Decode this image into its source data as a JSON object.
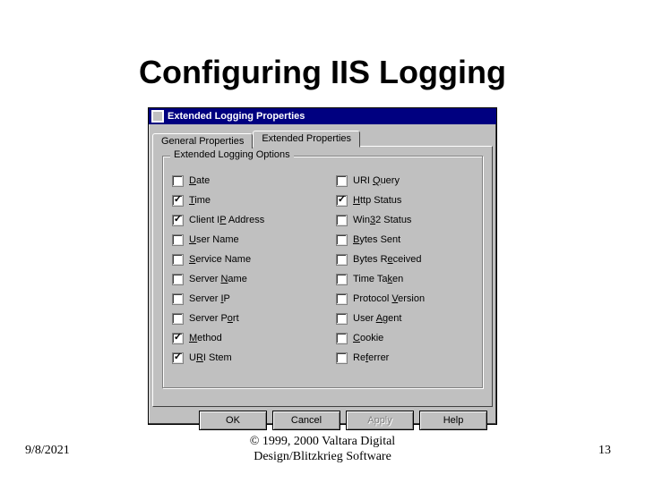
{
  "slide": {
    "title": "Configuring IIS Logging",
    "footer_date": "9/8/2021",
    "footer_copyright_l1": "© 1999, 2000 Valtara Digital",
    "footer_copyright_l2": "Design/Blitzkrieg Software",
    "footer_page": "13"
  },
  "dialog": {
    "title": "Extended Logging Properties",
    "tabs": {
      "general": "General Properties",
      "extended": "Extended Properties"
    },
    "active_tab": "extended",
    "groupbox_title": "Extended Logging Options",
    "options_left": [
      {
        "label_html": "<u>D</u>ate",
        "checked": false
      },
      {
        "label_html": "<u>T</u>ime",
        "checked": true
      },
      {
        "label_html": "Client I<u>P</u> Address",
        "checked": true
      },
      {
        "label_html": "<u>U</u>ser Name",
        "checked": false
      },
      {
        "label_html": "<u>S</u>ervice Name",
        "checked": false
      },
      {
        "label_html": "Server <u>N</u>ame",
        "checked": false
      },
      {
        "label_html": "Server <u>I</u>P",
        "checked": false
      },
      {
        "label_html": "Server P<u>o</u>rt",
        "checked": false
      },
      {
        "label_html": "<u>M</u>ethod",
        "checked": true
      },
      {
        "label_html": "U<u>R</u>I Stem",
        "checked": true
      }
    ],
    "options_right": [
      {
        "label_html": "URI <u>Q</u>uery",
        "checked": false
      },
      {
        "label_html": "<u>H</u>ttp Status",
        "checked": true
      },
      {
        "label_html": "Win<u>3</u>2 Status",
        "checked": false
      },
      {
        "label_html": "<u>B</u>ytes Sent",
        "checked": false
      },
      {
        "label_html": "Bytes R<u>e</u>ceived",
        "checked": false
      },
      {
        "label_html": "Time Ta<u>k</u>en",
        "checked": false
      },
      {
        "label_html": "Protocol <u>V</u>ersion",
        "checked": false
      },
      {
        "label_html": "User <u>A</u>gent",
        "checked": false
      },
      {
        "label_html": "<u>C</u>ookie",
        "checked": false
      },
      {
        "label_html": "Re<u>f</u>errer",
        "checked": false
      }
    ],
    "buttons": {
      "ok": "OK",
      "cancel": "Cancel",
      "apply": "Apply",
      "help": "Help",
      "apply_enabled": false
    }
  },
  "colors": {
    "dialog_bg": "#c0c0c0",
    "titlebar_bg": "#000080",
    "titlebar_fg": "#ffffff",
    "slide_bg": "#ffffff"
  }
}
